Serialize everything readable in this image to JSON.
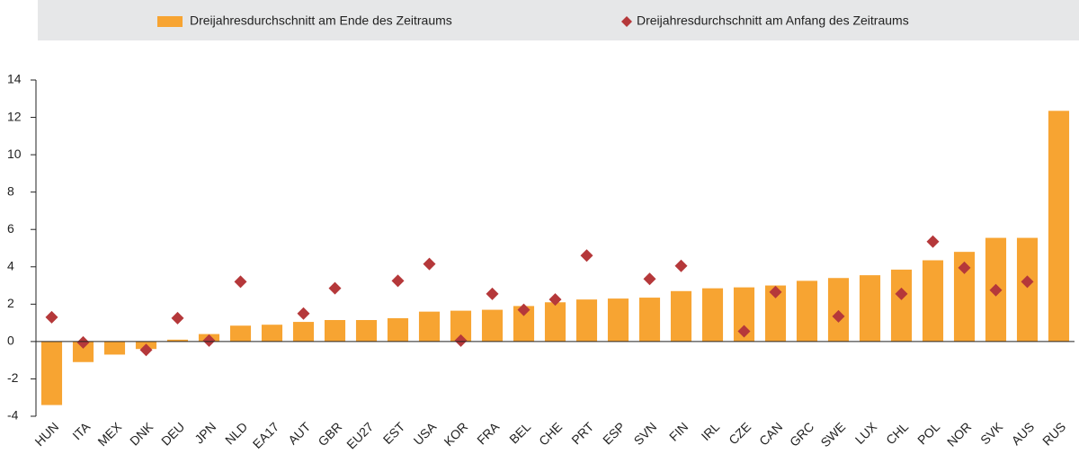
{
  "chart_data": {
    "type": "bar",
    "categories": [
      "HUN",
      "ITA",
      "MEX",
      "DNK",
      "DEU",
      "JPN",
      "NLD",
      "EA17",
      "AUT",
      "GBR",
      "EU27",
      "EST",
      "USA",
      "KOR",
      "FRA",
      "BEL",
      "CHE",
      "PRT",
      "ESP",
      "SVN",
      "FIN",
      "IRL",
      "CZE",
      "CAN",
      "GRC",
      "SWE",
      "LUX",
      "CHL",
      "POL",
      "NOR",
      "SVK",
      "AUS",
      "RUS"
    ],
    "series": [
      {
        "name": "Dreijahresdurchschnitt am Ende des Zeitraums",
        "type": "bar",
        "color": "#f7a432",
        "values": [
          -3.4,
          -1.1,
          -0.7,
          -0.4,
          0.1,
          0.4,
          0.85,
          0.9,
          1.05,
          1.15,
          1.15,
          1.25,
          1.6,
          1.65,
          1.7,
          1.9,
          2.1,
          2.25,
          2.3,
          2.35,
          2.7,
          2.85,
          2.9,
          3.0,
          3.25,
          3.4,
          3.55,
          3.85,
          4.35,
          4.8,
          5.55,
          5.55,
          12.35
        ]
      },
      {
        "name": "Dreijahresdurchschnitt am Anfang des Zeitraums",
        "type": "scatter",
        "color": "#b5383a",
        "values": [
          1.3,
          -0.05,
          null,
          -0.45,
          1.25,
          0.05,
          3.2,
          null,
          1.5,
          2.85,
          null,
          3.25,
          4.15,
          0.05,
          2.55,
          1.7,
          2.25,
          4.6,
          null,
          3.35,
          4.05,
          null,
          0.55,
          2.65,
          null,
          1.35,
          null,
          2.55,
          5.35,
          3.95,
          2.75,
          3.2,
          null
        ]
      }
    ],
    "ylim": [
      -4,
      14
    ],
    "yticks": [
      -4,
      -2,
      0,
      2,
      4,
      6,
      8,
      10,
      12,
      14
    ],
    "grid": false,
    "legend": "top"
  }
}
